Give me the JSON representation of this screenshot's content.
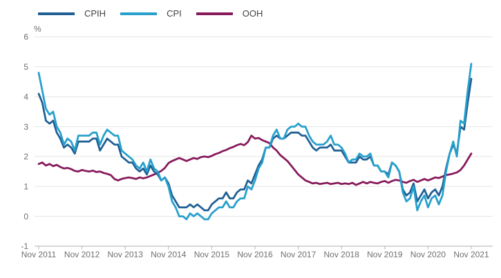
{
  "chart_data": {
    "type": "line",
    "unit_label": "%",
    "grid": "horizontal",
    "legend_position": "top-left",
    "x_axis": {
      "start": "Nov 2011",
      "end": "Nov 2021",
      "interval": "monthly",
      "points": 121,
      "tick_labels": [
        "Nov 2011",
        "Nov 2012",
        "Nov 2013",
        "Nov 2014",
        "Nov 2015",
        "Nov 2016",
        "Nov 2017",
        "Nov 2018",
        "Nov 2019",
        "Nov 2020",
        "Nov 2021"
      ]
    },
    "y_axis": {
      "min": -1,
      "max": 6,
      "ticks": [
        6,
        5,
        4,
        3,
        2,
        1,
        0,
        -1
      ]
    },
    "series": [
      {
        "name": "CPIH",
        "color": "#206095",
        "values": [
          4.1,
          3.8,
          3.2,
          3.1,
          3.2,
          2.8,
          2.6,
          2.3,
          2.4,
          2.3,
          2.1,
          2.5,
          2.5,
          2.5,
          2.5,
          2.6,
          2.6,
          2.2,
          2.4,
          2.6,
          2.5,
          2.4,
          2.4,
          2.0,
          1.9,
          1.8,
          1.8,
          1.6,
          1.5,
          1.6,
          1.4,
          1.7,
          1.5,
          1.4,
          1.2,
          1.3,
          1.1,
          0.7,
          0.5,
          0.3,
          0.3,
          0.3,
          0.4,
          0.3,
          0.4,
          0.3,
          0.2,
          0.2,
          0.4,
          0.5,
          0.6,
          0.6,
          0.8,
          0.6,
          0.6,
          0.8,
          0.9,
          0.9,
          1.2,
          1.1,
          1.4,
          1.7,
          1.9,
          2.3,
          2.3,
          2.6,
          2.7,
          2.6,
          2.6,
          2.7,
          2.8,
          2.8,
          2.8,
          2.7,
          2.7,
          2.5,
          2.3,
          2.2,
          2.3,
          2.3,
          2.3,
          2.4,
          2.2,
          2.2,
          2.2,
          2.0,
          1.8,
          1.8,
          1.8,
          2.0,
          1.9,
          1.9,
          2.0,
          1.7,
          1.7,
          1.5,
          1.5,
          1.4,
          1.8,
          1.7,
          1.5,
          0.9,
          0.7,
          0.8,
          1.1,
          0.5,
          0.7,
          0.9,
          0.6,
          0.8,
          0.9,
          0.7,
          1.0,
          1.6,
          2.1,
          2.4,
          2.1,
          3.0,
          2.9,
          3.8,
          4.6
        ]
      },
      {
        "name": "CPI",
        "color": "#27A0CC",
        "values": [
          4.8,
          4.2,
          3.6,
          3.4,
          3.5,
          3.0,
          2.8,
          2.4,
          2.6,
          2.5,
          2.2,
          2.7,
          2.7,
          2.7,
          2.7,
          2.8,
          2.8,
          2.4,
          2.7,
          2.9,
          2.8,
          2.7,
          2.7,
          2.2,
          2.1,
          2.0,
          1.9,
          1.7,
          1.6,
          1.8,
          1.5,
          1.9,
          1.6,
          1.5,
          1.2,
          1.3,
          1.0,
          0.5,
          0.3,
          0.0,
          0.0,
          -0.1,
          0.1,
          0.0,
          0.1,
          0.0,
          -0.1,
          -0.1,
          0.1,
          0.2,
          0.3,
          0.3,
          0.5,
          0.3,
          0.3,
          0.5,
          0.6,
          0.6,
          1.0,
          0.9,
          1.2,
          1.6,
          1.8,
          2.3,
          2.3,
          2.7,
          2.9,
          2.6,
          2.6,
          2.9,
          3.0,
          3.0,
          3.1,
          3.0,
          3.0,
          2.7,
          2.5,
          2.4,
          2.4,
          2.4,
          2.5,
          2.7,
          2.4,
          2.4,
          2.3,
          2.1,
          1.8,
          1.9,
          1.9,
          2.1,
          2.0,
          2.0,
          2.1,
          1.7,
          1.7,
          1.5,
          1.5,
          1.3,
          1.8,
          1.7,
          1.5,
          0.8,
          0.5,
          0.6,
          1.0,
          0.2,
          0.5,
          0.7,
          0.3,
          0.6,
          0.7,
          0.4,
          0.7,
          1.5,
          2.1,
          2.5,
          2.0,
          3.2,
          3.1,
          4.2,
          5.1
        ]
      },
      {
        "name": "OOH",
        "color": "#871A5B",
        "values": [
          1.75,
          1.8,
          1.7,
          1.75,
          1.68,
          1.72,
          1.65,
          1.6,
          1.62,
          1.58,
          1.52,
          1.5,
          1.55,
          1.52,
          1.5,
          1.53,
          1.48,
          1.5,
          1.45,
          1.42,
          1.38,
          1.25,
          1.2,
          1.25,
          1.28,
          1.3,
          1.28,
          1.25,
          1.3,
          1.27,
          1.3,
          1.35,
          1.4,
          1.45,
          1.52,
          1.62,
          1.78,
          1.85,
          1.9,
          1.95,
          1.9,
          1.85,
          1.9,
          1.95,
          1.92,
          1.98,
          2.0,
          1.98,
          2.02,
          2.08,
          2.12,
          2.18,
          2.22,
          2.28,
          2.32,
          2.38,
          2.42,
          2.38,
          2.48,
          2.7,
          2.6,
          2.62,
          2.55,
          2.5,
          2.45,
          2.3,
          2.2,
          2.05,
          1.95,
          1.85,
          1.7,
          1.55,
          1.4,
          1.3,
          1.2,
          1.15,
          1.1,
          1.12,
          1.08,
          1.1,
          1.12,
          1.08,
          1.1,
          1.12,
          1.08,
          1.1,
          1.08,
          1.12,
          1.05,
          1.1,
          1.15,
          1.1,
          1.15,
          1.12,
          1.1,
          1.15,
          1.18,
          1.12,
          1.18,
          1.22,
          1.2,
          1.15,
          1.12,
          1.18,
          1.22,
          1.15,
          1.2,
          1.25,
          1.2,
          1.25,
          1.3,
          1.28,
          1.33,
          1.38,
          1.4,
          1.43,
          1.47,
          1.55,
          1.7,
          1.9,
          2.1
        ]
      }
    ]
  },
  "colors": {
    "grid": "#e4e4e4",
    "axis": "#b3b3b3",
    "tick_text": "#6f6f6f",
    "legend_text": "#414042"
  }
}
